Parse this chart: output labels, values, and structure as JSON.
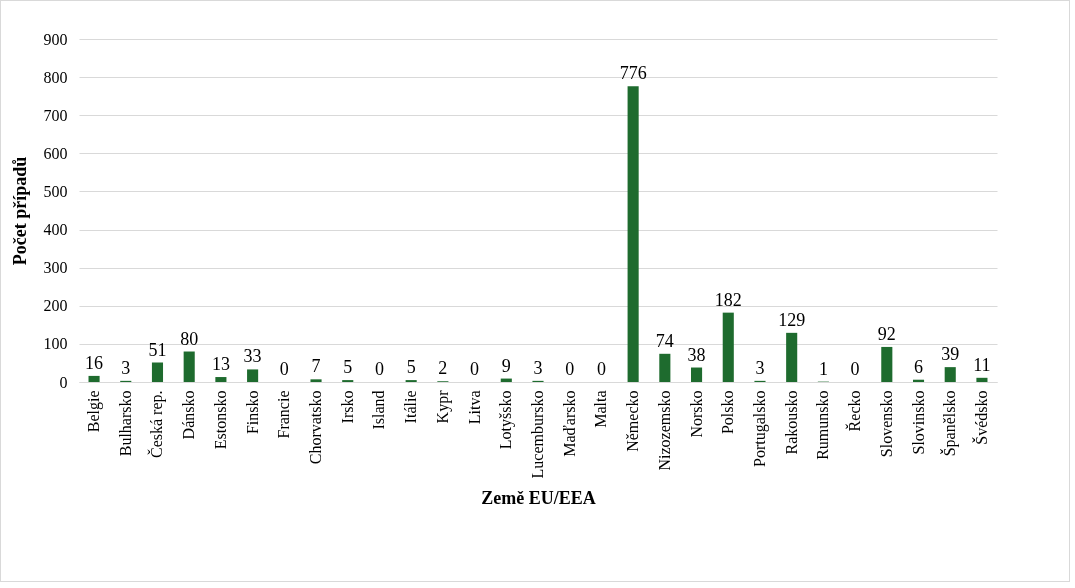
{
  "chart_data": {
    "type": "bar",
    "xlabel": "Země EU/EEA",
    "ylabel": "Počet případů",
    "categories": [
      "Belgie",
      "Bulharsko",
      "Česká rep.",
      "Dánsko",
      "Estonsko",
      "Finsko",
      "Francie",
      "Chorvatsko",
      "Irsko",
      "Island",
      "Itálie",
      "Kypr",
      "Litva",
      "Lotyšsko",
      "Lucembursko",
      "Maďarsko",
      "Malta",
      "Německo",
      "Nizozemsko",
      "Norsko",
      "Polsko",
      "Portugalsko",
      "Rakousko",
      "Rumunsko",
      "Řecko",
      "Slovensko",
      "Slovinsko",
      "Španělsko",
      "Švédsko"
    ],
    "values": [
      16,
      3,
      51,
      80,
      13,
      33,
      0,
      7,
      5,
      0,
      5,
      2,
      0,
      9,
      3,
      0,
      0,
      776,
      74,
      38,
      182,
      3,
      129,
      1,
      0,
      92,
      6,
      39,
      11
    ],
    "color": "#1e6b2e",
    "ylim": [
      0,
      900
    ],
    "yticks": [
      0,
      100,
      200,
      300,
      400,
      500,
      600,
      700,
      800,
      900
    ],
    "grid": "y",
    "data_labels": true
  }
}
